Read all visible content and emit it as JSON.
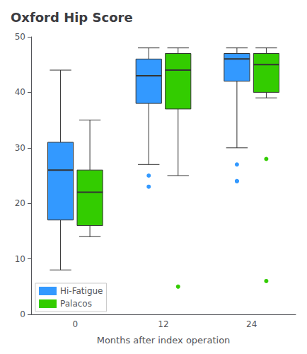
{
  "chart_data": {
    "type": "boxplot",
    "title": "Oxford Hip Score",
    "xlabel": "Months after index operation",
    "categories": [
      "0",
      "12",
      "24"
    ],
    "series": [
      {
        "name": "Hi-Fatigue",
        "color": "#3399ff",
        "values": [
          [
            8,
            17,
            26,
            31,
            44
          ],
          [
            27,
            38,
            43,
            46,
            48
          ],
          [
            30,
            42,
            46,
            47,
            48
          ]
        ],
        "fliers": [
          [],
          [
            25,
            23
          ],
          [
            27,
            24,
            24
          ]
        ]
      },
      {
        "name": "Palacos",
        "color": "#33cc00",
        "values": [
          [
            14,
            16,
            22,
            26,
            35
          ],
          [
            25,
            37,
            44,
            47,
            48
          ],
          [
            39,
            40,
            45,
            47,
            48
          ]
        ],
        "fliers": [
          [],
          [
            5
          ],
          [
            28,
            6
          ]
        ]
      }
    ],
    "ylim": [
      0,
      50
    ],
    "yticks": [
      0,
      10,
      20,
      30,
      40,
      50
    ],
    "grid": false,
    "legend": "lower left"
  }
}
